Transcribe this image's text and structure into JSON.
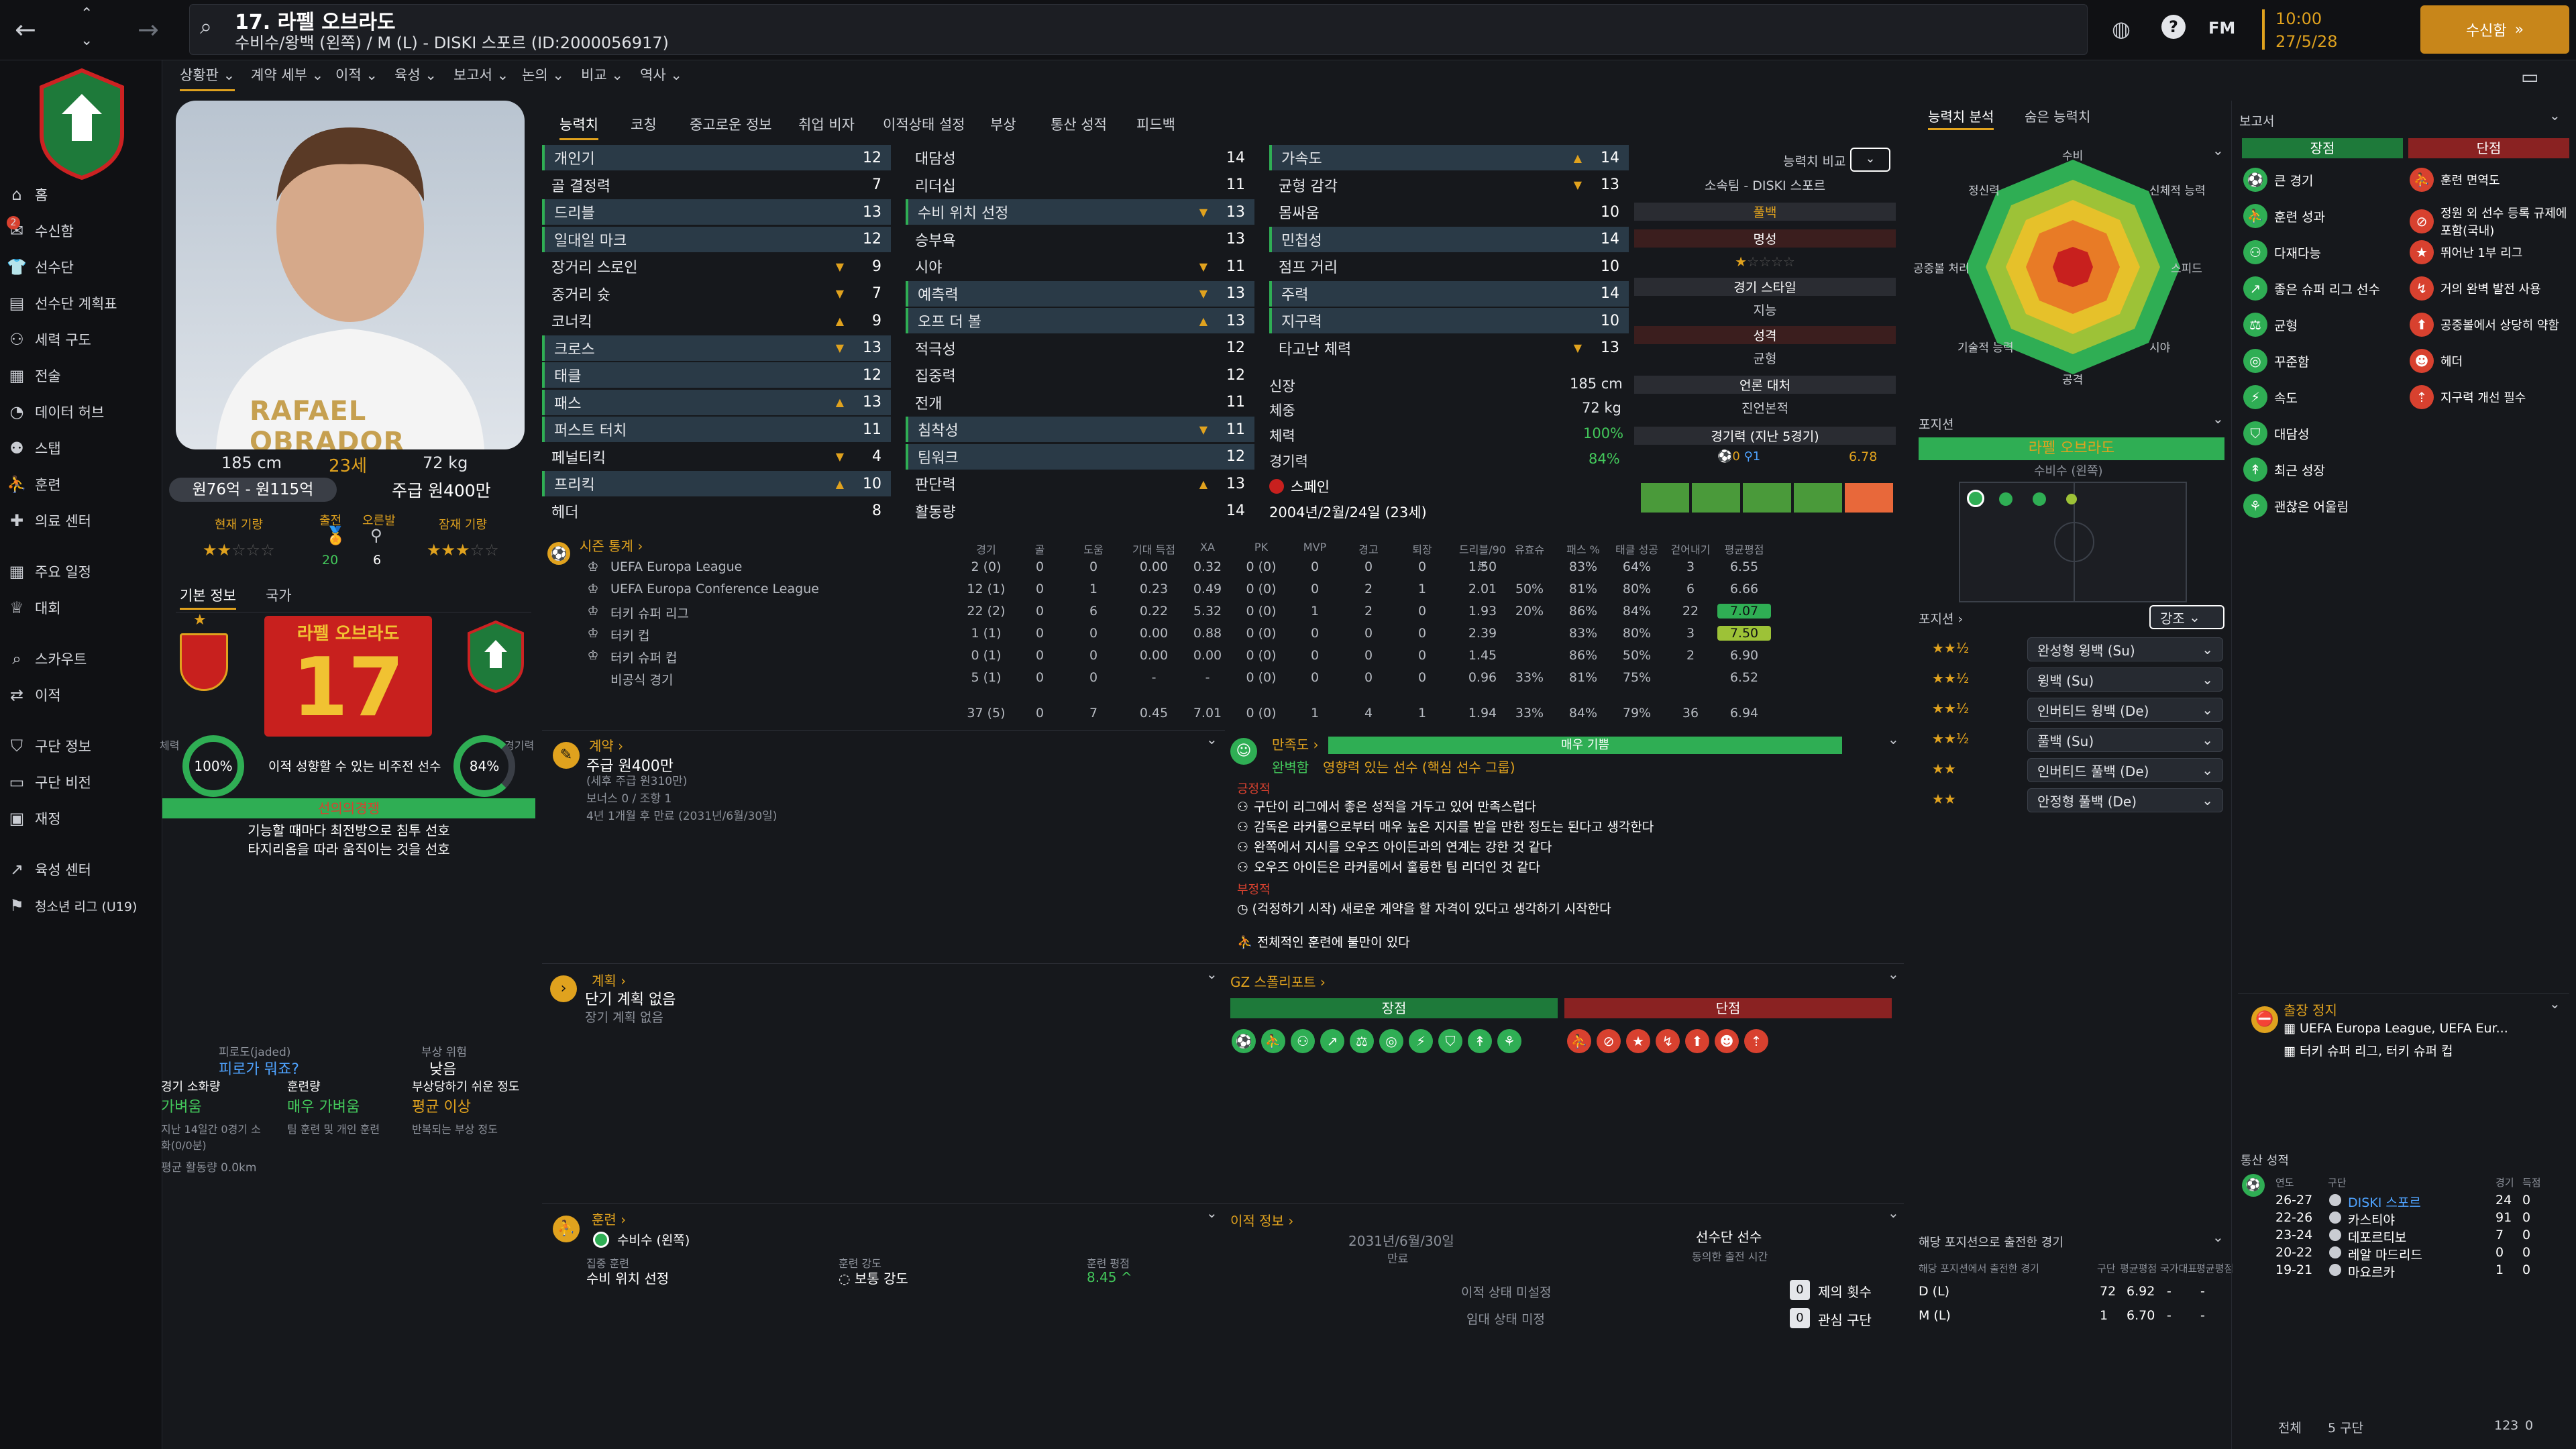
{
  "header": {
    "title": "17. 라펠 오브라도",
    "subtitle": "수비수/왕백 (왼쪽) / M (L) - DISKI 스포르 (ID:2000056917)",
    "date_time": "10:00",
    "date": "27/5/28",
    "continue": "수신함",
    "fm": "FM"
  },
  "sidebar": {
    "items": [
      "홈",
      "수신함",
      "선수단",
      "선수단 계획표",
      "세력 구도",
      "전술",
      "데이터 허브",
      "스탭",
      "훈련",
      "의료 센터",
      "주요 일정",
      "대회",
      "스카우트",
      "이적",
      "구단 정보",
      "구단 비전",
      "재정",
      "육성 센터",
      "청소년 리그 (U19)"
    ],
    "inbox_badge": "2"
  },
  "subnav": [
    "상황판",
    "계약 세부",
    "이적",
    "육성",
    "보고서",
    "논의",
    "비교",
    "역사"
  ],
  "player": {
    "height": "185 cm",
    "age": "23세",
    "weight": "72 kg",
    "value": "원76억 - 원115억",
    "wage": "주급 원400만",
    "current": "현재 기량",
    "potential": "잠재 기량",
    "apps_label": "출전",
    "apps": "20",
    "goals_label": "오른발",
    "goals": "6",
    "shirt_name": "RAFAEL OBRADOR",
    "name_card": "라펠 오브라도",
    "number": "17",
    "tab1": "기본 정보",
    "tab2": "국가",
    "fitness_label": "체력",
    "fitness": "100%",
    "sharp_label": "경기력",
    "sharp": "84%",
    "role_note": "이적 성향할 수 있는 비주전 선수",
    "status": "선의의경쟁",
    "pref1": "기능할 때마다 최전방으로 침투 선호",
    "pref2": "타지리옴을 따라 움직이는 것을 선호",
    "fatigue_h": "피로도(jaded)",
    "fatigue": "피로가 뭐죠?",
    "injury_h": "부상 위험",
    "injury": "낮음",
    "load_h": "경기 소화량",
    "load": "가벼움",
    "training_h": "훈련량",
    "training": "매우 가벼움",
    "prone_h": "부상당하기 쉬운 정도",
    "prone": "평균 이상",
    "load_note": "지난 14일간 0경기 소화(0/0분)",
    "training_note": "팀 훈련 및 개인 훈련",
    "prone_note": "반복되는 부상 정도",
    "dist": "평균 활동량 0.0km"
  },
  "tabs": [
    "능력치",
    "코칭",
    "중고로운 정보",
    "취업 비자",
    "이적상태 설정",
    "부상",
    "통산 성적",
    "피드백"
  ],
  "attrs": {
    "tech": [
      [
        "개인기",
        "12"
      ],
      [
        "골 결정력",
        "7"
      ],
      [
        "드리블",
        "13"
      ],
      [
        "일대일 마크",
        "12"
      ],
      [
        "장거리 스로인",
        "9"
      ],
      [
        "중거리 슛",
        "7"
      ],
      [
        "코너킥",
        "9"
      ],
      [
        "크로스",
        "13"
      ],
      [
        "태클",
        "12"
      ],
      [
        "패스",
        "13"
      ],
      [
        "퍼스트 터치",
        "11"
      ],
      [
        "페널티킥",
        "4"
      ],
      [
        "프리킥",
        "10"
      ],
      [
        "헤더",
        "8"
      ]
    ],
    "ment": [
      [
        "대담성",
        "14"
      ],
      [
        "리더십",
        "11"
      ],
      [
        "수비 위치 선정",
        "13"
      ],
      [
        "승부욕",
        "13"
      ],
      [
        "시야",
        "11"
      ],
      [
        "예측력",
        "13"
      ],
      [
        "오프 더 볼",
        "13"
      ],
      [
        "적극성",
        "12"
      ],
      [
        "집중력",
        "12"
      ],
      [
        "전개",
        "11"
      ],
      [
        "침착성",
        "11"
      ],
      [
        "팀워크",
        "12"
      ],
      [
        "판단력",
        "13"
      ],
      [
        "활동량",
        "14"
      ]
    ],
    "phys": [
      [
        "가속도",
        "14"
      ],
      [
        "균형 감각",
        "13"
      ],
      [
        "몸싸움",
        "10"
      ],
      [
        "민첩성",
        "14"
      ],
      [
        "점프 거리",
        "10"
      ],
      [
        "주력",
        "14"
      ],
      [
        "지구력",
        "10"
      ],
      [
        "타고난 체력",
        "13"
      ]
    ]
  },
  "physinfo": {
    "height_l": "신장",
    "height": "185 cm",
    "weight_l": "체중",
    "weight": "72 kg",
    "cond_l": "체력",
    "cond": "100%",
    "sharp_l": "경기력",
    "sharp": "84%",
    "foot_l": "",
    "nation": "스페인",
    "dob": "2004년/2월/24일 (23세)"
  },
  "compare": {
    "btn": "능력치 비교",
    "club": "소속팀 - DISKI 스포르",
    "role": "풀백",
    "fame_h": "명성",
    "style_h": "경기 스타일",
    "style": "지능",
    "pers_h": "성격",
    "pers": "균형",
    "media_h": "언론 대처",
    "media": "진언본적",
    "form_h": "경기력 (지난 5경기)",
    "form": "6.78"
  },
  "season": {
    "title": "시즌 통계",
    "cols": [
      "경기",
      "골",
      "도움",
      "기대 득점",
      "XA",
      "PK",
      "MVP",
      "경고",
      "퇴장",
      "드리블/90분",
      "유효슈",
      "패스 %",
      "태클 성공",
      "걷어내기",
      "평균평점"
    ],
    "rows": [
      [
        "UEFA Europa League",
        "2 (0)",
        "0",
        "0",
        "0.00",
        "0.32",
        "0 (0)",
        "0",
        "0",
        "0",
        "1.50",
        "",
        "83%",
        "64%",
        "3",
        "6.55"
      ],
      [
        "UEFA Europa Conference League",
        "12 (1)",
        "0",
        "1",
        "0.23",
        "0.49",
        "0 (0)",
        "0",
        "2",
        "1",
        "2.01",
        "50%",
        "81%",
        "80%",
        "6",
        "6.66"
      ],
      [
        "터키 슈퍼 리그",
        "22 (2)",
        "0",
        "6",
        "0.22",
        "5.32",
        "0 (0)",
        "1",
        "2",
        "0",
        "1.93",
        "20%",
        "86%",
        "84%",
        "22",
        "7.07"
      ],
      [
        "터키 컵",
        "1 (1)",
        "0",
        "0",
        "0.00",
        "0.88",
        "0 (0)",
        "0",
        "0",
        "0",
        "2.39",
        "",
        "83%",
        "80%",
        "3",
        "7.50"
      ],
      [
        "터키 슈퍼 컵",
        "0 (1)",
        "0",
        "0",
        "0.00",
        "0.00",
        "0 (0)",
        "0",
        "0",
        "0",
        "1.45",
        "",
        "86%",
        "50%",
        "2",
        "6.90"
      ],
      [
        "비공식 경기",
        "5 (1)",
        "0",
        "0",
        "-",
        "-",
        "0 (0)",
        "0",
        "0",
        "0",
        "0.96",
        "33%",
        "81%",
        "75%",
        "",
        "6.52"
      ],
      [
        "",
        "37 (5)",
        "0",
        "7",
        "0.45",
        "7.01",
        "0 (0)",
        "1",
        "4",
        "1",
        "1.94",
        "33%",
        "84%",
        "79%",
        "36",
        "6.94"
      ]
    ]
  },
  "contract": {
    "h": "계약",
    "wage": "주급 원400만",
    "note1": "(세후 주급 원310만)",
    "note2": "보너스 0 / 조항 1",
    "note3": "4년 1개월 후 만료 (2031년/6월/30일)"
  },
  "happy": {
    "h": "만족도",
    "bar": "매우 기쁨",
    "role": "완벽함",
    "role2": "영향력 있는 선수 (핵심 선수 그룹)",
    "pos_h": "긍정적",
    "pos": [
      "구단이 리그에서 좋은 성적을 거두고 있어 만족스럽다",
      "감독은 라커룸으로부터 매우 높은 지지를 받을 만한 정도는 된다고 생각한다",
      "완쪽에서 지시를 오우즈 아이든과의 연계는 강한 것 같다",
      "오우즈 아이든은 라커룸에서 훌륭한 팀 리더인 것 같다"
    ],
    "neg_h": "부정적",
    "neg1": "(걱정하기 시작) 새로운 계약을 할 자격이 있다고 생각하기 시작한다",
    "neg2": "전체적인 훈련에 불만이 있다"
  },
  "plan": {
    "h": "계획",
    "t1": "단기 계획 없음",
    "t2": "장기 계획 없음"
  },
  "gz": {
    "h": "GZ 스폴리포트",
    "pro": "장점",
    "con": "단점"
  },
  "training": {
    "h": "훈련",
    "pos": "수비수 (왼쪽)",
    "focus_l": "집중 훈련",
    "focus": "수비 위치 선정",
    "int_l": "훈련 강도",
    "int": "보통 강도",
    "rating_l": "훈련 평점",
    "rating": "8.45"
  },
  "transfer": {
    "h": "이적 정보",
    "date": "2031년/6월/30일",
    "exp": "만료",
    "squad": "선수단 선수",
    "squad2": "동의한 출전 시간",
    "tstat": "이적 상태 미설정",
    "lstat": "임대 상태 미정",
    "offers": "제의 횟수",
    "interest": "관심 구단",
    "zero": "0"
  },
  "radar": {
    "tab1": "능력치 분석",
    "tab2": "숨은 능력치",
    "labels": [
      "수비",
      "신체적 능력",
      "스피드",
      "시야",
      "공격",
      "기술적 능력",
      "공중볼 처리",
      "정신력"
    ]
  },
  "pos": {
    "h": "포지션",
    "name": "라펠 오브라도",
    "pos": "수비수 (왼쪽)",
    "roles_h": "포지션",
    "sort": "강조",
    "roles": [
      "완성형 윙백 (Su)",
      "윙백 (Su)",
      "인버티드 윙백 (De)",
      "풀백 (Su)",
      "인버티드 풀백 (De)",
      "안정형 풀백 (De)"
    ]
  },
  "posapps": {
    "h": "해당 포지션으로 출전한 경기",
    "sub": "해당 포지션에서 출전한 경기",
    "cols": [
      "구단",
      "평균평점",
      "국가대표",
      "평균평점"
    ],
    "rows": [
      [
        "D (L)",
        "72",
        "6.92",
        "-",
        "-"
      ],
      [
        "M (L)",
        "1",
        "6.70",
        "-",
        "-"
      ]
    ]
  },
  "report": {
    "h": "보고서",
    "pro": "장점",
    "con": "단점",
    "pros": [
      "큰 경기",
      "훈련 성과",
      "다재다능",
      "좋은 슈퍼 리그 선수",
      "균형",
      "꾸준함",
      "속도",
      "대담성",
      "최근 성장",
      "괜찮은 어울림"
    ],
    "cons": [
      "훈련 면역도",
      "정원 외 선수 등록 규제에 포함(국내)",
      "뛰어난 1부 리그",
      "거의 완벽 발전 사용",
      "공중볼에서 상당히 약함",
      "헤더",
      "지구력 개선 필수"
    ]
  },
  "suspend": {
    "h": "출장 정지",
    "l1": "UEFA Europa League, UEFA Eur...",
    "l2": "터키 슈퍼 리그, 터키 슈퍼 컵"
  },
  "career": {
    "h": "통산 성적",
    "cols": [
      "연도",
      "구단",
      "경기",
      "득점"
    ],
    "rows": [
      [
        "26-27",
        "DISKI 스포르",
        "24",
        "0"
      ],
      [
        "22-26",
        "카스티야",
        "91",
        "0"
      ],
      [
        "23-24",
        "데포르티보",
        "7",
        "0"
      ],
      [
        "20-22",
        "레알 마드리드",
        "0",
        "0"
      ],
      [
        "19-21",
        "마요르카",
        "1",
        "0"
      ]
    ],
    "total_l": "전체",
    "total_c": "5 구단",
    "total_a": "123",
    "total_g": "0"
  },
  "colors": {
    "accent": "#e0a21e",
    "green": "#2fae54",
    "red": "#d8412f",
    "bg": "#16181c"
  }
}
